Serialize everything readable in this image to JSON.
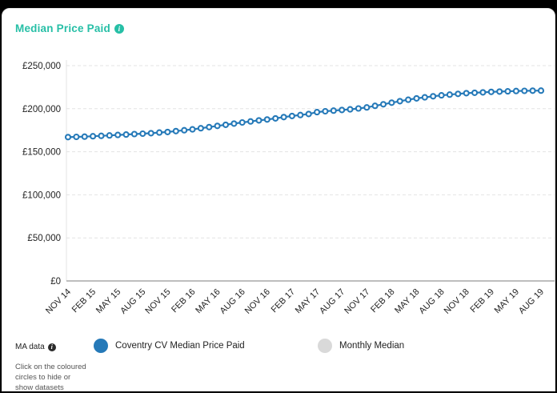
{
  "header": {
    "title": "Median Price Paid"
  },
  "ma_note": {
    "label": "MA data",
    "caption": "Click on the coloured circles to hide or show datasets"
  },
  "legend": {
    "items": [
      {
        "label": "Coventry CV Median Price Paid",
        "color": "#2579b8",
        "active": true
      },
      {
        "label": "Monthly Median",
        "color": "#d9d9d9",
        "active": false
      }
    ]
  },
  "chart_data": {
    "type": "line",
    "title": "Median Price Paid",
    "xlabel": "",
    "ylabel": "",
    "ylim": [
      0,
      250000
    ],
    "grid": "dashed-horizontal",
    "legend_position": "bottom",
    "y_ticks": [
      {
        "value": 250000,
        "label": "£250,000"
      },
      {
        "value": 200000,
        "label": "£200,000"
      },
      {
        "value": 150000,
        "label": "£150,000"
      },
      {
        "value": 100000,
        "label": "£100,000"
      },
      {
        "value": 50000,
        "label": "£50,000"
      },
      {
        "value": 0,
        "label": "£0"
      }
    ],
    "x_tick_labels": [
      "NOV 14",
      "FEB 15",
      "MAY 15",
      "AUG 15",
      "NOV 15",
      "FEB 16",
      "MAY 16",
      "AUG 16",
      "NOV 16",
      "FEB 17",
      "MAY 17",
      "AUG 17",
      "NOV 17",
      "FEB 18",
      "MAY 18",
      "AUG 18",
      "NOV 18",
      "FEB 19",
      "MAY 19",
      "AUG 19"
    ],
    "x_tick_every": 3,
    "points_per_series": 58,
    "series": [
      {
        "name": "Coventry CV Median Price Paid",
        "color": "#2579b8",
        "marker": "open-circle",
        "values": [
          167000,
          167300,
          167600,
          168000,
          168500,
          169000,
          169500,
          170000,
          170500,
          171000,
          171600,
          172300,
          173000,
          174000,
          175000,
          176000,
          177300,
          178600,
          180000,
          181300,
          182700,
          184000,
          185200,
          186400,
          187500,
          188800,
          190200,
          191500,
          192700,
          193900,
          196000,
          197000,
          197800,
          198500,
          199300,
          200300,
          201500,
          203300,
          205100,
          207000,
          208700,
          210400,
          212000,
          213200,
          214400,
          215500,
          216400,
          217200,
          218000,
          218500,
          219000,
          219500,
          219900,
          220200,
          220500,
          220700,
          220900,
          221000
        ]
      }
    ]
  }
}
